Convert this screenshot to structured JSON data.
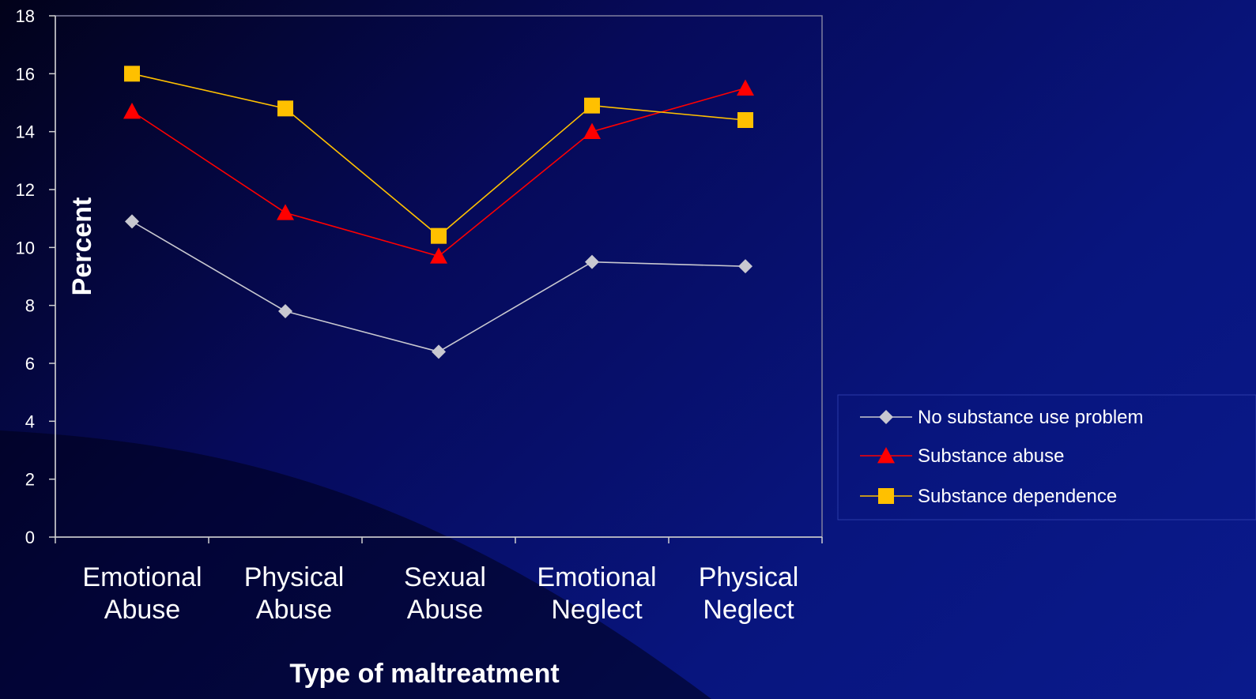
{
  "chart_data": {
    "type": "line",
    "categories": [
      [
        "Emotional",
        "Abuse"
      ],
      [
        "Physical",
        "Abuse"
      ],
      [
        "Sexual",
        "Abuse"
      ],
      [
        "Emotional",
        "Neglect"
      ],
      [
        "Physical",
        "Neglect"
      ]
    ],
    "series": [
      {
        "name": "No substance use problem",
        "values": [
          10.9,
          7.8,
          6.4,
          9.5,
          9.35
        ],
        "color": "#c8c8d0",
        "marker": "diamond"
      },
      {
        "name": "Substance abuse",
        "values": [
          14.7,
          11.2,
          9.7,
          14.0,
          15.5
        ],
        "color": "#ff0000",
        "marker": "triangle"
      },
      {
        "name": "Substance dependence",
        "values": [
          16.0,
          14.8,
          10.4,
          14.9,
          14.4
        ],
        "color": "#ffc000",
        "marker": "square"
      }
    ],
    "ylabel": "Percent",
    "xlabel": "Type of maltreatment",
    "ylim": [
      0,
      18
    ],
    "yticks": [
      0,
      2,
      4,
      6,
      8,
      10,
      12,
      14,
      16,
      18
    ],
    "legend_position": "right",
    "grid": false
  }
}
